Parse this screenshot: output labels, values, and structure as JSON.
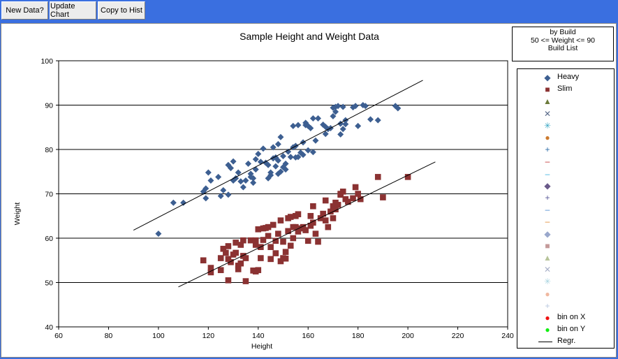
{
  "toolbar": {
    "buttons": [
      "New Data?",
      "Update Chart",
      "Copy to Hist"
    ]
  },
  "build_box": {
    "line1": "by Build",
    "line2": "50 <= Weight <= 90",
    "line3": "Build List"
  },
  "legend": [
    {
      "label": "Heavy",
      "symbol": "◆",
      "color": "#3d5f91"
    },
    {
      "label": "Slim",
      "symbol": "■",
      "color": "#8b3232"
    },
    {
      "label": "",
      "symbol": "▲",
      "color": "#6b7a3a"
    },
    {
      "label": "",
      "symbol": "✕",
      "color": "#5a6b8a"
    },
    {
      "label": "",
      "symbol": "✳",
      "color": "#3aa7c4"
    },
    {
      "label": "",
      "symbol": "●",
      "color": "#cc7a2e"
    },
    {
      "label": "",
      "symbol": "+",
      "color": "#2e6ea8"
    },
    {
      "label": "",
      "symbol": "–",
      "color": "#c03030"
    },
    {
      "label": "",
      "symbol": "–",
      "color": "#3ab0e0"
    },
    {
      "label": "",
      "symbol": "◆",
      "color": "#6a5a8a"
    },
    {
      "label": "",
      "symbol": "+",
      "color": "#5a5a9a"
    },
    {
      "label": "",
      "symbol": "–",
      "color": "#4a8ad0"
    },
    {
      "label": "",
      "symbol": "–",
      "color": "#e08a30"
    },
    {
      "label": "",
      "symbol": "◆",
      "color": "#9aa8cc"
    },
    {
      "label": "",
      "symbol": "■",
      "color": "#c49a9a"
    },
    {
      "label": "",
      "symbol": "▲",
      "color": "#b7c49a"
    },
    {
      "label": "",
      "symbol": "✕",
      "color": "#a8b0c8"
    },
    {
      "label": "",
      "symbol": "✳",
      "color": "#a8d4e0"
    },
    {
      "label": "",
      "symbol": "●",
      "color": "#f0b8a0"
    },
    {
      "label": "",
      "symbol": "+",
      "color": "#b8c8e0"
    },
    {
      "label": "bin on X",
      "symbol": "●",
      "color": "#ee1111"
    },
    {
      "label": "bin on Y",
      "symbol": "●",
      "color": "#11ee11"
    },
    {
      "label": "Regr.",
      "symbol": "line",
      "color": "#000000"
    }
  ],
  "chart_data": {
    "type": "scatter",
    "title": "Sample Height and Weight Data",
    "xlabel": "Height",
    "ylabel": "Weight",
    "xlim": [
      60,
      240
    ],
    "ylim": [
      40,
      100
    ],
    "xticks": [
      60,
      80,
      100,
      120,
      140,
      160,
      180,
      200,
      220,
      240
    ],
    "yticks": [
      40,
      50,
      60,
      70,
      80,
      90,
      100
    ],
    "grid": "horizontal",
    "legend_position": "right",
    "series": [
      {
        "name": "Heavy",
        "marker": "diamond",
        "color": "#3d5f91",
        "points": [
          [
            100,
            61
          ],
          [
            106,
            68
          ],
          [
            110,
            68
          ],
          [
            118,
            70.5
          ],
          [
            119,
            71.2
          ],
          [
            119,
            69
          ],
          [
            120,
            74.8
          ],
          [
            121,
            73
          ],
          [
            124,
            73.8
          ],
          [
            125,
            69.5
          ],
          [
            126,
            70.8
          ],
          [
            128,
            76.5
          ],
          [
            128,
            69.8
          ],
          [
            129,
            75.8
          ],
          [
            130,
            73
          ],
          [
            130,
            77.3
          ],
          [
            131,
            73.5
          ],
          [
            132,
            74.8
          ],
          [
            133,
            72.8
          ],
          [
            134,
            71.5
          ],
          [
            135,
            73
          ],
          [
            136,
            76.8
          ],
          [
            137,
            74.5
          ],
          [
            137,
            73.8
          ],
          [
            138,
            72.5
          ],
          [
            138,
            73.5
          ],
          [
            139,
            75.5
          ],
          [
            139,
            77.8
          ],
          [
            140,
            79
          ],
          [
            141,
            77.2
          ],
          [
            142,
            80.2
          ],
          [
            143,
            77
          ],
          [
            144,
            73.5
          ],
          [
            144,
            76.5
          ],
          [
            145,
            74.2
          ],
          [
            145,
            74.8
          ],
          [
            146,
            78
          ],
          [
            146,
            80.5
          ],
          [
            147,
            76.2
          ],
          [
            147,
            78.2
          ],
          [
            148,
            74.5
          ],
          [
            148,
            77.5
          ],
          [
            148,
            81.2
          ],
          [
            149,
            82.8
          ],
          [
            149,
            75
          ],
          [
            150,
            76
          ],
          [
            150,
            78.5
          ],
          [
            151,
            76.8
          ],
          [
            151,
            75.5
          ],
          [
            152,
            79.5
          ],
          [
            153,
            78.3
          ],
          [
            154,
            80.5
          ],
          [
            154,
            85.3
          ],
          [
            155,
            80.8
          ],
          [
            155,
            78.2
          ],
          [
            156,
            85.5
          ],
          [
            156,
            78.3
          ],
          [
            157,
            79.3
          ],
          [
            158,
            81.6
          ],
          [
            158,
            78.8
          ],
          [
            159,
            86
          ],
          [
            159,
            85.5
          ],
          [
            160,
            79.8
          ],
          [
            160,
            85.3
          ],
          [
            161,
            84.8
          ],
          [
            162,
            87
          ],
          [
            162,
            79.4
          ],
          [
            163,
            82
          ],
          [
            164,
            87
          ],
          [
            166,
            85.6
          ],
          [
            167,
            85.1
          ],
          [
            167,
            83.5
          ],
          [
            168,
            84.6
          ],
          [
            169,
            84.8
          ],
          [
            170,
            87.5
          ],
          [
            170,
            89.4
          ],
          [
            171,
            89.6
          ],
          [
            171,
            88.5
          ],
          [
            172,
            89.8
          ],
          [
            173,
            85.8
          ],
          [
            173,
            83.4
          ],
          [
            174,
            89.6
          ],
          [
            174,
            84.6
          ],
          [
            175,
            86.6
          ],
          [
            175,
            85.7
          ],
          [
            178,
            89.5
          ],
          [
            179,
            89.8
          ],
          [
            180,
            85.3
          ],
          [
            182,
            90
          ],
          [
            183,
            89.8
          ],
          [
            185,
            86.8
          ],
          [
            188,
            86.6
          ],
          [
            195,
            89.8
          ],
          [
            196,
            89.3
          ]
        ]
      },
      {
        "name": "Slim",
        "marker": "square",
        "color": "#8b3232",
        "points": [
          [
            118,
            55
          ],
          [
            121,
            52.3
          ],
          [
            121,
            53.3
          ],
          [
            125,
            52.8
          ],
          [
            125,
            55.5
          ],
          [
            126,
            57.6
          ],
          [
            127,
            56.7
          ],
          [
            128,
            50.5
          ],
          [
            128,
            58.2
          ],
          [
            128,
            55.3
          ],
          [
            129,
            54.6
          ],
          [
            130,
            56.3
          ],
          [
            131,
            59
          ],
          [
            131,
            56.7
          ],
          [
            132,
            53.8
          ],
          [
            132,
            53
          ],
          [
            133,
            54.3
          ],
          [
            133,
            58.5
          ],
          [
            134,
            59.5
          ],
          [
            134,
            56
          ],
          [
            135,
            50.3
          ],
          [
            135,
            55.5
          ],
          [
            137,
            59.5
          ],
          [
            138,
            52.7
          ],
          [
            139,
            52.5
          ],
          [
            139,
            58.5
          ],
          [
            139,
            59.5
          ],
          [
            140,
            62
          ],
          [
            140,
            52.8
          ],
          [
            141,
            58
          ],
          [
            141,
            55.5
          ],
          [
            142,
            62.2
          ],
          [
            142,
            59.6
          ],
          [
            143,
            62.3
          ],
          [
            144,
            60.5
          ],
          [
            144,
            62.5
          ],
          [
            145,
            58
          ],
          [
            145,
            55.3
          ],
          [
            146,
            63
          ],
          [
            147,
            56.6
          ],
          [
            147,
            59.4
          ],
          [
            148,
            61
          ],
          [
            149,
            64
          ],
          [
            149,
            54.8
          ],
          [
            150,
            55.5
          ],
          [
            150,
            59.2
          ],
          [
            151,
            56.9
          ],
          [
            151,
            55.4
          ],
          [
            152,
            61.6
          ],
          [
            152,
            64.5
          ],
          [
            153,
            58.3
          ],
          [
            153,
            64.8
          ],
          [
            154,
            62.5
          ],
          [
            154,
            60
          ],
          [
            155,
            62.5
          ],
          [
            155,
            65
          ],
          [
            156,
            61.5
          ],
          [
            156,
            65.4
          ],
          [
            157,
            62.2
          ],
          [
            158,
            62.5
          ],
          [
            159,
            61.8
          ],
          [
            160,
            59.4
          ],
          [
            161,
            62.8
          ],
          [
            161,
            65
          ],
          [
            162,
            67.2
          ],
          [
            162,
            63.5
          ],
          [
            163,
            61
          ],
          [
            164,
            59.2
          ],
          [
            165,
            64.5
          ],
          [
            166,
            65.5
          ],
          [
            167,
            64
          ],
          [
            167,
            68.5
          ],
          [
            168,
            62.5
          ],
          [
            169,
            66
          ],
          [
            170,
            67.2
          ],
          [
            170,
            64.5
          ],
          [
            171,
            68
          ],
          [
            171,
            66.5
          ],
          [
            172,
            67.5
          ],
          [
            173,
            70
          ],
          [
            173,
            69.8
          ],
          [
            174,
            70.5
          ],
          [
            175,
            68.8
          ],
          [
            176,
            68.2
          ],
          [
            178,
            69
          ],
          [
            179,
            71.5
          ],
          [
            180,
            70
          ],
          [
            181,
            68.8
          ],
          [
            188,
            73.8
          ],
          [
            190,
            69.2
          ],
          [
            200,
            73.8
          ]
        ]
      }
    ],
    "regression_lines": [
      {
        "series": "Heavy",
        "x1": 90,
        "y1": 61.8,
        "x2": 206,
        "y2": 95.6
      },
      {
        "series": "Slim",
        "x1": 108,
        "y1": 49,
        "x2": 211,
        "y2": 77.2
      }
    ]
  }
}
